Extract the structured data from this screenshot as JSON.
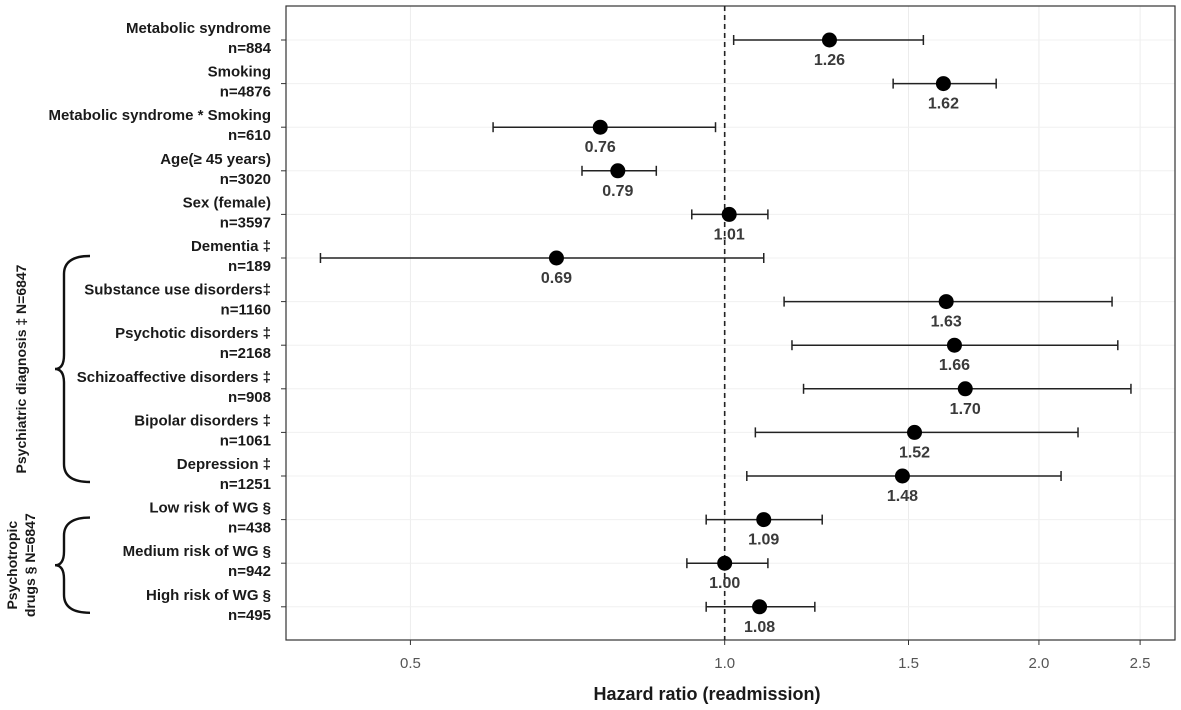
{
  "chart_data": {
    "type": "forest",
    "xlabel": "Hazard ratio (readmission)",
    "x_scale": "log",
    "xlim": [
      0.38,
      2.7
    ],
    "x_ticks": [
      0.5,
      1.0,
      1.5,
      2.0,
      2.5
    ],
    "x_tick_labels": [
      "0.5",
      "1.0",
      "1.5",
      "2.0",
      "2.5"
    ],
    "reference_line": 1.0,
    "grid": true,
    "rows": [
      {
        "label": "Metabolic syndrome",
        "n": "n=884",
        "hr": 1.26,
        "hr_label": "1.26",
        "lo": 1.02,
        "hi": 1.55
      },
      {
        "label": "Smoking",
        "n": "n=4876",
        "hr": 1.62,
        "hr_label": "1.62",
        "lo": 1.45,
        "hi": 1.82
      },
      {
        "label": "Metabolic syndrome * Smoking",
        "n": "n=610",
        "hr": 0.76,
        "hr_label": "0.76",
        "lo": 0.6,
        "hi": 0.98
      },
      {
        "label": "Age(≥ 45 years)",
        "n": "n=3020",
        "hr": 0.79,
        "hr_label": "0.79",
        "lo": 0.73,
        "hi": 0.86
      },
      {
        "label": "Sex (female)",
        "n": "n=3597",
        "hr": 1.01,
        "hr_label": "1.01",
        "lo": 0.93,
        "hi": 1.1
      },
      {
        "label": "Dementia ‡",
        "n": "n=189",
        "hr": 0.69,
        "hr_label": "0.69",
        "lo": 0.41,
        "hi": 1.09
      },
      {
        "label": "Substance use disorders‡",
        "n": "n=1160",
        "hr": 1.63,
        "hr_label": "1.63",
        "lo": 1.14,
        "hi": 2.35
      },
      {
        "label": "Psychotic disorders ‡",
        "n": "n=2168",
        "hr": 1.66,
        "hr_label": "1.66",
        "lo": 1.16,
        "hi": 2.38
      },
      {
        "label": "Schizoaffective disorders ‡",
        "n": "n=908",
        "hr": 1.7,
        "hr_label": "1.70",
        "lo": 1.19,
        "hi": 2.45
      },
      {
        "label": "Bipolar disorders ‡",
        "n": "n=1061",
        "hr": 1.52,
        "hr_label": "1.52",
        "lo": 1.07,
        "hi": 2.18
      },
      {
        "label": "Depression ‡",
        "n": "n=1251",
        "hr": 1.48,
        "hr_label": "1.48",
        "lo": 1.05,
        "hi": 2.1
      },
      {
        "label": "Low risk of WG §",
        "n": "n=438",
        "hr": 1.09,
        "hr_label": "1.09",
        "lo": 0.96,
        "hi": 1.24
      },
      {
        "label": "Medium risk of WG §",
        "n": "n=942",
        "hr": 1.0,
        "hr_label": "1.00",
        "lo": 0.92,
        "hi": 1.1
      },
      {
        "label": "High risk of WG §",
        "n": "n=495",
        "hr": 1.08,
        "hr_label": "1.08",
        "lo": 0.96,
        "hi": 1.22
      }
    ],
    "groups": [
      {
        "lines": [
          "Psychiatric diagnosis ‡ N=6847"
        ],
        "from_row": 5,
        "to_row": 10
      },
      {
        "lines": [
          "Psychotropic",
          "drugs § N=6847"
        ],
        "from_row": 11,
        "to_row": 13
      }
    ]
  }
}
